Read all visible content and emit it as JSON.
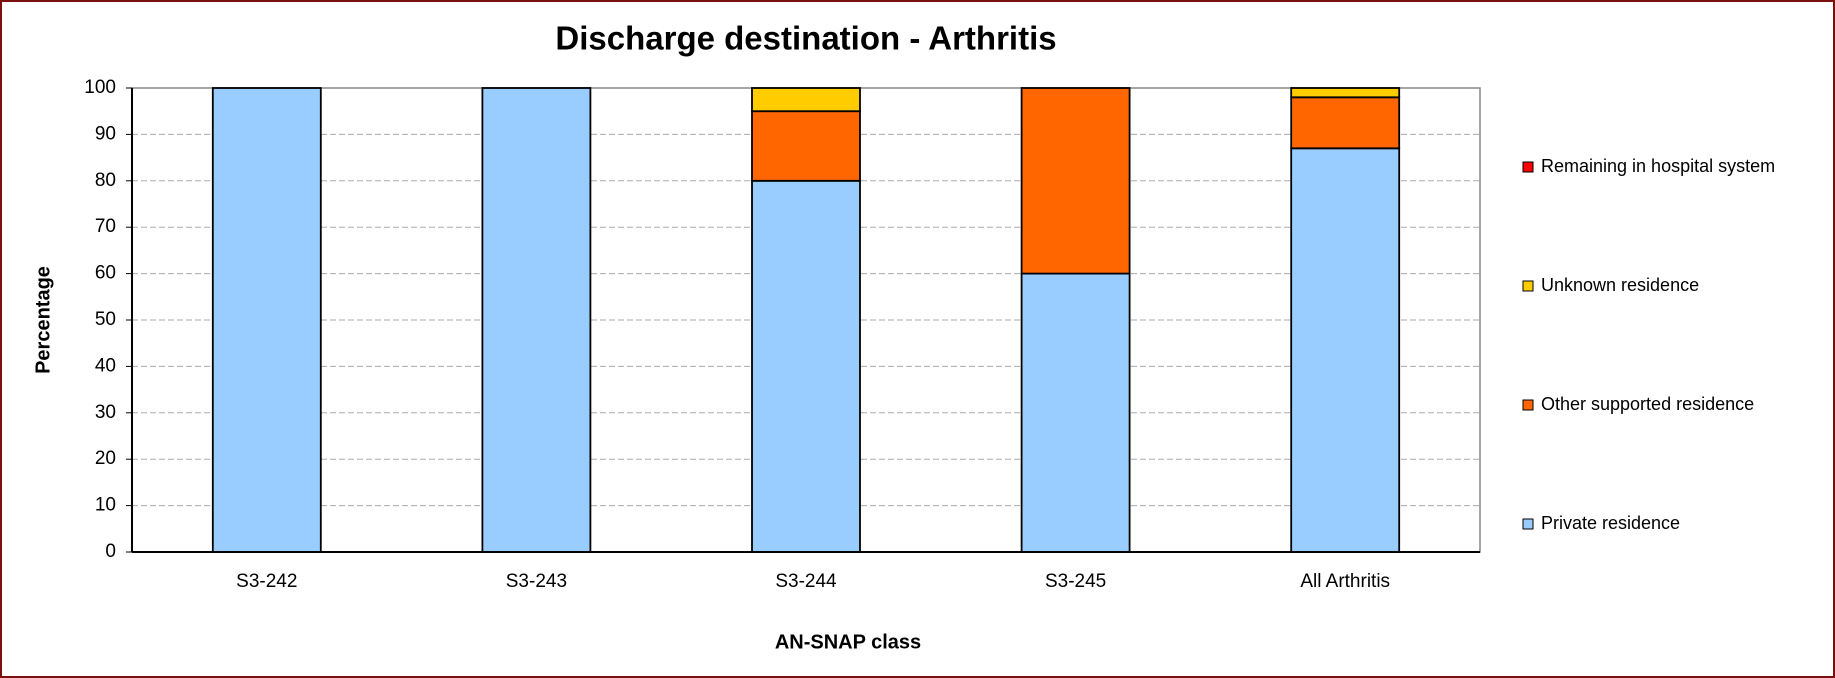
{
  "chart_data": {
    "type": "stacked_bar",
    "title": "Discharge destination - Arthritis",
    "x_label": "AN-SNAP class",
    "y_label": "Percentage",
    "categories": [
      "S3-242",
      "S3-243",
      "S3-244",
      "S3-245",
      "All Arthritis"
    ],
    "series": [
      {
        "name": "Private residence",
        "color": "#99ccff",
        "values": [
          100,
          100,
          80,
          60,
          87
        ]
      },
      {
        "name": "Other supported residence",
        "color": "#ff6600",
        "values": [
          0,
          0,
          15,
          40,
          11
        ]
      },
      {
        "name": "Unknown residence",
        "color": "#ffcc00",
        "values": [
          0,
          0,
          5,
          0,
          2
        ]
      },
      {
        "name": "Remaining in hospital system",
        "color": "#ff0000",
        "values": [
          0,
          0,
          0,
          0,
          0
        ]
      }
    ],
    "ylim": [
      0,
      100
    ],
    "yticks": [
      0,
      10,
      20,
      30,
      40,
      50,
      60,
      70,
      80,
      90,
      100
    ],
    "grid": true
  }
}
